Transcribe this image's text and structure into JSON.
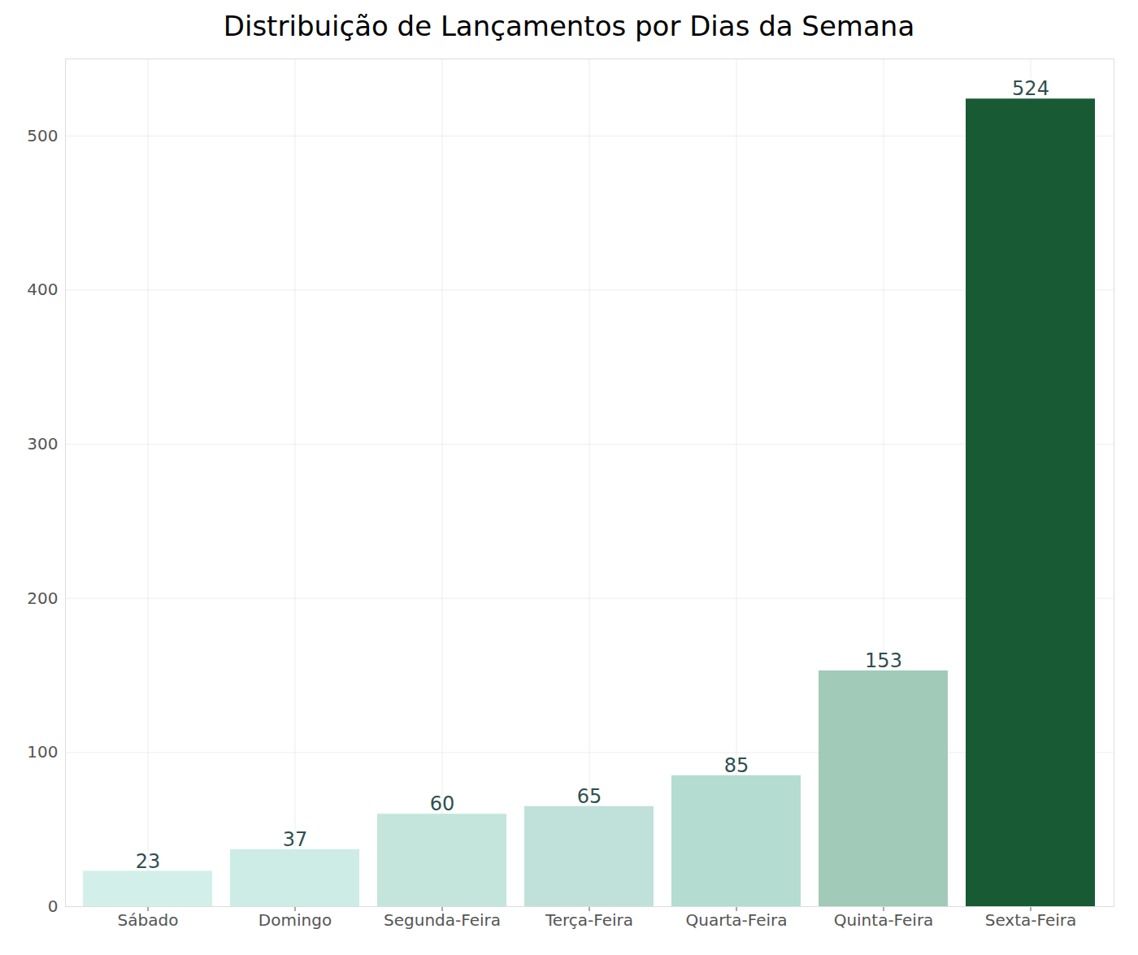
{
  "chart_data": {
    "type": "bar",
    "title": "Distribuição de Lançamentos por Dias da Semana",
    "categories": [
      "Sábado",
      "Domingo",
      "Segunda-Feira",
      "Terça-Feira",
      "Quarta-Feira",
      "Quinta-Feira",
      "Sexta-Feira"
    ],
    "values": [
      23,
      37,
      60,
      65,
      85,
      153,
      524
    ],
    "colors": [
      "#d2f0e9",
      "#cdece5",
      "#c3e5dc",
      "#bfe1d9",
      "#b5dcd1",
      "#a1cab9",
      "#175a34"
    ],
    "ylim": [
      0,
      550
    ],
    "yticks": [
      0,
      100,
      200,
      300,
      400,
      500
    ],
    "grid": true,
    "data_labels": true
  }
}
